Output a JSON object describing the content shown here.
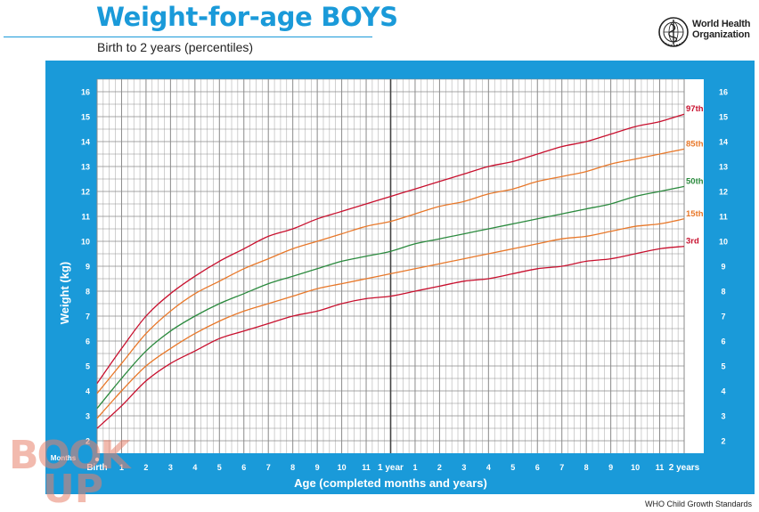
{
  "header": {
    "title": "Weight-for-age BOYS",
    "subtitle": "Birth to 2 years (percentiles)",
    "org_line1": "World Health",
    "org_line2": "Organization"
  },
  "footer": {
    "text": "WHO Child Growth Standards"
  },
  "watermark": {
    "text_top": "BOOK",
    "text_bottom": "UP"
  },
  "colors": {
    "frame": "#1a9ad9",
    "grid": "#8a8a8a",
    "p97": "#c8102e",
    "p85": "#e8782a",
    "p50": "#2b8a3e",
    "p15": "#e8782a",
    "p3": "#c8102e",
    "label_97": "#c8102e",
    "label_85": "#e8782a",
    "label_50": "#2b8a3e",
    "label_15": "#e8782a",
    "label_3": "#c8102e"
  },
  "chart_data": {
    "type": "line",
    "title": "Weight-for-age BOYS",
    "subtitle": "Birth to 2 years (percentiles)",
    "xlabel": "Age (completed months and years)",
    "ylabel": "Weight (kg)",
    "xlim": [
      0,
      24
    ],
    "ylim": [
      1.5,
      16.5
    ],
    "grid": true,
    "x_tick_prefix": "Months",
    "x_tick_labels": [
      "Birth",
      "1",
      "2",
      "3",
      "4",
      "5",
      "6",
      "7",
      "8",
      "9",
      "10",
      "11",
      "1 year",
      "1",
      "2",
      "3",
      "4",
      "5",
      "6",
      "7",
      "8",
      "9",
      "10",
      "11",
      "2 years"
    ],
    "y_ticks": [
      2,
      3,
      4,
      5,
      6,
      7,
      8,
      9,
      10,
      11,
      12,
      13,
      14,
      15,
      16
    ],
    "x": [
      0,
      1,
      2,
      3,
      4,
      5,
      6,
      7,
      8,
      9,
      10,
      11,
      12,
      13,
      14,
      15,
      16,
      17,
      18,
      19,
      20,
      21,
      22,
      23,
      24
    ],
    "series": [
      {
        "name": "97th",
        "key": "p97",
        "values": [
          4.3,
          5.7,
          7.0,
          7.9,
          8.6,
          9.2,
          9.7,
          10.2,
          10.5,
          10.9,
          11.2,
          11.5,
          11.8,
          12.1,
          12.4,
          12.7,
          13.0,
          13.2,
          13.5,
          13.8,
          14.0,
          14.3,
          14.6,
          14.8,
          15.1
        ]
      },
      {
        "name": "85th",
        "key": "p85",
        "values": [
          3.9,
          5.1,
          6.3,
          7.2,
          7.9,
          8.4,
          8.9,
          9.3,
          9.7,
          10.0,
          10.3,
          10.6,
          10.8,
          11.1,
          11.4,
          11.6,
          11.9,
          12.1,
          12.4,
          12.6,
          12.8,
          13.1,
          13.3,
          13.5,
          13.7
        ]
      },
      {
        "name": "50th",
        "key": "p50",
        "values": [
          3.3,
          4.5,
          5.6,
          6.4,
          7.0,
          7.5,
          7.9,
          8.3,
          8.6,
          8.9,
          9.2,
          9.4,
          9.6,
          9.9,
          10.1,
          10.3,
          10.5,
          10.7,
          10.9,
          11.1,
          11.3,
          11.5,
          11.8,
          12.0,
          12.2
        ]
      },
      {
        "name": "15th",
        "key": "p15",
        "values": [
          2.9,
          4.0,
          5.0,
          5.7,
          6.3,
          6.8,
          7.2,
          7.5,
          7.8,
          8.1,
          8.3,
          8.5,
          8.7,
          8.9,
          9.1,
          9.3,
          9.5,
          9.7,
          9.9,
          10.1,
          10.2,
          10.4,
          10.6,
          10.7,
          10.9
        ]
      },
      {
        "name": "3rd",
        "key": "p3",
        "values": [
          2.5,
          3.4,
          4.4,
          5.1,
          5.6,
          6.1,
          6.4,
          6.7,
          7.0,
          7.2,
          7.5,
          7.7,
          7.8,
          8.0,
          8.2,
          8.4,
          8.5,
          8.7,
          8.9,
          9.0,
          9.2,
          9.3,
          9.5,
          9.7,
          9.8
        ]
      }
    ]
  }
}
